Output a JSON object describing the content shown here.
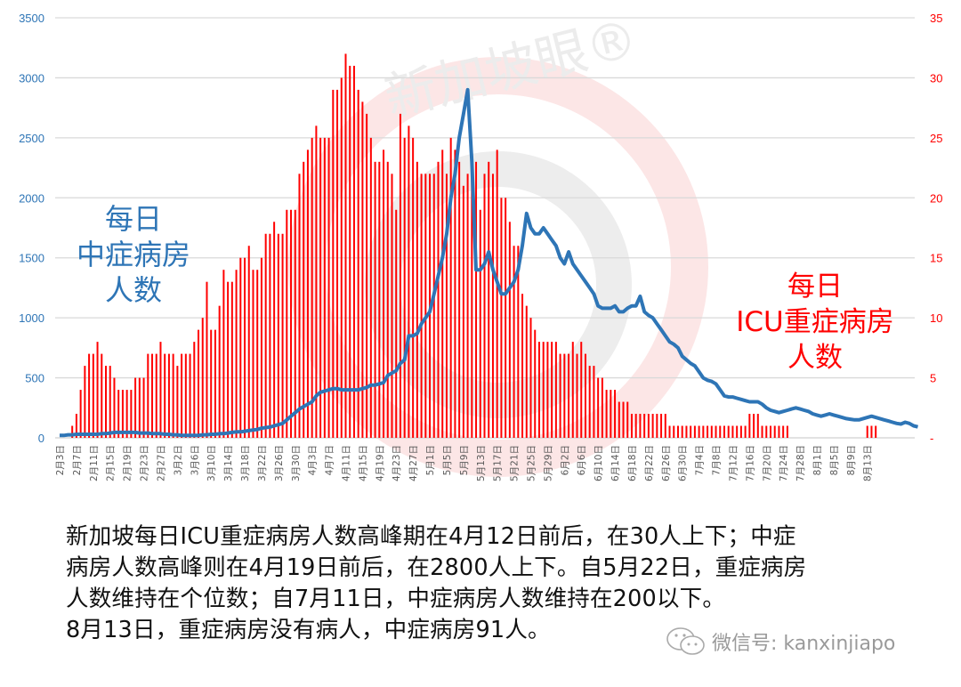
{
  "chart_data": {
    "type": "bar+line",
    "title": "",
    "left_axis": {
      "label": "每日中症病房人数",
      "ticks": [
        0,
        500,
        1000,
        1500,
        2000,
        2500,
        3000,
        3500
      ],
      "range": [
        0,
        3500
      ],
      "color": "#2e75b6"
    },
    "right_axis": {
      "label": "每日ICU重症病房人数",
      "ticks": [
        "-",
        "5",
        "10",
        "15",
        "20",
        "25",
        "30",
        "35"
      ],
      "range": [
        0,
        35
      ],
      "color": "#ff0000"
    },
    "x_tick_labels": [
      "2月3日",
      "2月7日",
      "2月11日",
      "2月15日",
      "2月19日",
      "2月23日",
      "2月27日",
      "3月2日",
      "3月6日",
      "3月10日",
      "3月14日",
      "3月18日",
      "3月22日",
      "3月26日",
      "3月30日",
      "4月3日",
      "4月7日",
      "4月11日",
      "4月15日",
      "4月19日",
      "4月23日",
      "4月27日",
      "5月1日",
      "5月5日",
      "5月9日",
      "5月13日",
      "5月17日",
      "5月21日",
      "5月25日",
      "5月29日",
      "6月2日",
      "6月6日",
      "6月10日",
      "6月14日",
      "6月18日",
      "6月22日",
      "6月26日",
      "6月30日",
      "7月4日",
      "7月8日",
      "7月12日",
      "7月16日",
      "7月20日",
      "7月24日",
      "7月28日",
      "8月1日",
      "8月5日",
      "8月9日",
      "8月13日"
    ],
    "x_start": "2月3日",
    "x_end": "8月13日",
    "grid": true,
    "series": [
      {
        "name": "每日ICU重症病房人数",
        "type": "bar",
        "axis": "right",
        "color": "#ff0000",
        "values": [
          0,
          0,
          0,
          1,
          2,
          4,
          6,
          7,
          7,
          8,
          7,
          6,
          6,
          5,
          4,
          4,
          4,
          4,
          5,
          5,
          5,
          7,
          7,
          7,
          8,
          7,
          7,
          7,
          6,
          7,
          7,
          7,
          8,
          9,
          10,
          13,
          9,
          9,
          11,
          14,
          13,
          13,
          14,
          15,
          15,
          16,
          14,
          14,
          15,
          17,
          17,
          18,
          17,
          17,
          19,
          19,
          19,
          22,
          23,
          24,
          25,
          26,
          25,
          25,
          25,
          29,
          29,
          30,
          32,
          31,
          31,
          29,
          28,
          27,
          25,
          23,
          23,
          24,
          23,
          22,
          19,
          27,
          25,
          26,
          25,
          23,
          22,
          22,
          22,
          22,
          23,
          24,
          22,
          25,
          24,
          23,
          21,
          22,
          22,
          23,
          19,
          22,
          23,
          22,
          24,
          20,
          20,
          18,
          16,
          16,
          12,
          11,
          10,
          9,
          8,
          8,
          8,
          8,
          8,
          7,
          7,
          7,
          8,
          7,
          8,
          7,
          6,
          6,
          5,
          5,
          4,
          4,
          4,
          3,
          3,
          3,
          2,
          2,
          2,
          2,
          2,
          2,
          2,
          2,
          2,
          1,
          1,
          1,
          1,
          1,
          1,
          1,
          1,
          1,
          1,
          1,
          1,
          1,
          1,
          1,
          1,
          1,
          1,
          1,
          2,
          2,
          2,
          1,
          1,
          1,
          1,
          1,
          1,
          1,
          0,
          0,
          0,
          0,
          0,
          0,
          0,
          0,
          0,
          0,
          0,
          0,
          0,
          0,
          0,
          0,
          0,
          0,
          1,
          1,
          1,
          0,
          0,
          0,
          0,
          0,
          0,
          0,
          0
        ]
      },
      {
        "name": "每日中症病房人数",
        "type": "line",
        "axis": "left",
        "color": "#2e75b6",
        "values": [
          20,
          20,
          25,
          25,
          30,
          30,
          30,
          30,
          30,
          30,
          35,
          35,
          40,
          45,
          45,
          45,
          45,
          45,
          45,
          40,
          40,
          40,
          35,
          35,
          35,
          30,
          30,
          25,
          25,
          20,
          20,
          20,
          20,
          20,
          25,
          25,
          30,
          30,
          35,
          35,
          40,
          45,
          50,
          50,
          55,
          60,
          65,
          70,
          80,
          85,
          90,
          100,
          110,
          120,
          150,
          180,
          210,
          240,
          260,
          280,
          300,
          350,
          380,
          390,
          400,
          410,
          410,
          400,
          400,
          400,
          400,
          400,
          410,
          420,
          440,
          440,
          450,
          460,
          520,
          540,
          560,
          620,
          650,
          850,
          850,
          870,
          950,
          1000,
          1050,
          1200,
          1350,
          1500,
          1700,
          2000,
          2200,
          2500,
          2700,
          2900,
          2300,
          1400,
          1400,
          1450,
          1550,
          1400,
          1300,
          1200,
          1200,
          1250,
          1300,
          1400,
          1600,
          1870,
          1750,
          1700,
          1700,
          1750,
          1700,
          1650,
          1600,
          1500,
          1450,
          1550,
          1450,
          1400,
          1350,
          1300,
          1250,
          1200,
          1100,
          1080,
          1080,
          1080,
          1100,
          1050,
          1050,
          1080,
          1100,
          1100,
          1180,
          1050,
          1020,
          1000,
          950,
          900,
          850,
          800,
          780,
          750,
          680,
          650,
          620,
          600,
          550,
          500,
          480,
          470,
          450,
          400,
          350,
          340,
          340,
          330,
          320,
          310,
          300,
          300,
          300,
          280,
          250,
          230,
          220,
          210,
          220,
          230,
          240,
          250,
          240,
          230,
          220,
          200,
          190,
          180,
          190,
          200,
          190,
          180,
          170,
          160,
          155,
          150,
          150,
          160,
          170,
          180,
          170,
          160,
          150,
          140,
          130,
          120,
          115,
          130,
          120,
          100,
          91
        ]
      }
    ],
    "annotations": [
      {
        "text": [
          "每日",
          "中症病房",
          "人数"
        ],
        "color": "#2e75b6",
        "position": "left"
      },
      {
        "text": [
          "每日",
          "ICU重症病房",
          "人数"
        ],
        "color": "#ff0000",
        "position": "right"
      }
    ],
    "watermark": "新加坡眼®"
  },
  "caption": {
    "lines": [
      "新加坡每日ICU重症病房人数高峰期在4月12日前后，在30人上下；中症",
      "病房人数高峰则在4月19日前后，在2800人上下。自5月22日，重症病房",
      "人数维持在个位数；自7月11日，中症病房人数维持在200以下。",
      "8月13日，重症病房没有病人，中症病房91人。"
    ]
  },
  "annotations": {
    "left": {
      "line1": "每日",
      "line2": "中症病房",
      "line3": "人数"
    },
    "right": {
      "line1": "每日",
      "line2": "ICU重症病房",
      "line3": "人数"
    }
  },
  "watermark": {
    "text": "新加坡眼®",
    "wechat": "微信号: kanxinjiapo"
  }
}
